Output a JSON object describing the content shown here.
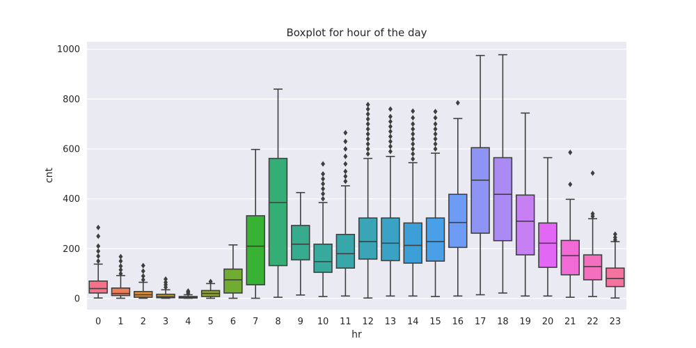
{
  "chart_data": {
    "type": "boxplot",
    "title": "Boxplot for hour of the day",
    "xlabel": "hr",
    "ylabel": "cnt",
    "ylim": [
      -45,
      1030
    ],
    "yticks": [
      0,
      200,
      400,
      600,
      800,
      1000
    ],
    "grid": true,
    "background": "#eaeaf2",
    "categories": [
      "0",
      "1",
      "2",
      "3",
      "4",
      "5",
      "6",
      "7",
      "8",
      "9",
      "10",
      "11",
      "12",
      "13",
      "14",
      "15",
      "16",
      "17",
      "18",
      "19",
      "20",
      "21",
      "22",
      "23"
    ],
    "boxes": [
      {
        "hr": "0",
        "color": "#f77189",
        "whislo": 2,
        "q1": 22,
        "med": 40,
        "q3": 70,
        "whishi": 138,
        "outliers": [
          150,
          170,
          190,
          210,
          250,
          285
        ]
      },
      {
        "hr": "1",
        "color": "#ec7d57",
        "whislo": 1,
        "q1": 12,
        "med": 20,
        "q3": 42,
        "whishi": 92,
        "outliers": [
          100,
          115,
          130,
          150,
          168
        ]
      },
      {
        "hr": "2",
        "color": "#d58c32",
        "whislo": 1,
        "q1": 5,
        "med": 15,
        "q3": 28,
        "whishi": 65,
        "outliers": [
          75,
          90,
          110,
          132
        ]
      },
      {
        "hr": "3",
        "color": "#bb9832",
        "whislo": 1,
        "q1": 3,
        "med": 7,
        "q3": 17,
        "whishi": 35,
        "outliers": [
          45,
          55,
          65,
          78
        ]
      },
      {
        "hr": "4",
        "color": "#a59f31",
        "whislo": 1,
        "q1": 2,
        "med": 5,
        "q3": 8,
        "whishi": 15,
        "outliers": [
          20,
          25,
          30
        ]
      },
      {
        "hr": "5",
        "color": "#8ea531",
        "whislo": 1,
        "q1": 8,
        "med": 20,
        "q3": 32,
        "whishi": 60,
        "outliers": [
          68
        ]
      },
      {
        "hr": "6",
        "color": "#6fac31",
        "whislo": 1,
        "q1": 22,
        "med": 75,
        "q3": 118,
        "whishi": 215,
        "outliers": []
      },
      {
        "hr": "7",
        "color": "#38b232",
        "whislo": 1,
        "q1": 55,
        "med": 210,
        "q3": 332,
        "whishi": 598,
        "outliers": []
      },
      {
        "hr": "8",
        "color": "#34ae75",
        "whislo": 5,
        "q1": 132,
        "med": 385,
        "q3": 562,
        "whishi": 840,
        "outliers": []
      },
      {
        "hr": "9",
        "color": "#36ab8d",
        "whislo": 14,
        "q1": 155,
        "med": 218,
        "q3": 293,
        "whishi": 425,
        "outliers": []
      },
      {
        "hr": "10",
        "color": "#37a99d",
        "whislo": 8,
        "q1": 105,
        "med": 148,
        "q3": 218,
        "whishi": 385,
        "outliers": [
          400,
          420,
          440,
          460,
          480,
          500,
          540
        ]
      },
      {
        "hr": "11",
        "color": "#38a7aa",
        "whislo": 10,
        "q1": 122,
        "med": 180,
        "q3": 257,
        "whishi": 452,
        "outliers": [
          470,
          490,
          510,
          540,
          570,
          600,
          630,
          665
        ]
      },
      {
        "hr": "12",
        "color": "#39a5b6",
        "whislo": 2,
        "q1": 158,
        "med": 228,
        "q3": 323,
        "whishi": 562,
        "outliers": [
          580,
          600,
          620,
          640,
          660,
          680,
          700,
          720,
          740,
          760,
          778
        ]
      },
      {
        "hr": "13",
        "color": "#3aa2c4",
        "whislo": 10,
        "q1": 152,
        "med": 222,
        "q3": 323,
        "whishi": 570,
        "outliers": [
          590,
          610,
          630,
          650,
          670,
          690,
          710,
          730,
          760
        ]
      },
      {
        "hr": "14",
        "color": "#3c9fd7",
        "whislo": 10,
        "q1": 142,
        "med": 213,
        "q3": 303,
        "whishi": 545,
        "outliers": [
          560,
          580,
          600,
          620,
          640,
          660,
          680,
          700,
          725,
          752
        ]
      },
      {
        "hr": "15",
        "color": "#49a0e6",
        "whislo": 8,
        "q1": 150,
        "med": 228,
        "q3": 323,
        "whishi": 583,
        "outliers": [
          600,
          620,
          640,
          660,
          680,
          700,
          725,
          750
        ]
      },
      {
        "hr": "16",
        "color": "#6e9bf4",
        "whislo": 10,
        "q1": 205,
        "med": 305,
        "q3": 418,
        "whishi": 722,
        "outliers": [
          785
        ]
      },
      {
        "hr": "17",
        "color": "#8d94f4",
        "whislo": 15,
        "q1": 262,
        "med": 475,
        "q3": 605,
        "whishi": 975,
        "outliers": []
      },
      {
        "hr": "18",
        "color": "#ac8af4",
        "whislo": 22,
        "q1": 232,
        "med": 418,
        "q3": 565,
        "whishi": 978,
        "outliers": []
      },
      {
        "hr": "19",
        "color": "#c77ff4",
        "whislo": 10,
        "q1": 175,
        "med": 310,
        "q3": 415,
        "whishi": 744,
        "outliers": []
      },
      {
        "hr": "20",
        "color": "#e167f4",
        "whislo": 10,
        "q1": 125,
        "med": 222,
        "q3": 303,
        "whishi": 565,
        "outliers": []
      },
      {
        "hr": "21",
        "color": "#f26ad6",
        "whislo": 5,
        "q1": 95,
        "med": 172,
        "q3": 233,
        "whishi": 398,
        "outliers": [
          458,
          586
        ]
      },
      {
        "hr": "22",
        "color": "#f46fbd",
        "whislo": 8,
        "q1": 75,
        "med": 128,
        "q3": 175,
        "whishi": 320,
        "outliers": [
          330,
          340,
          503
        ]
      },
      {
        "hr": "23",
        "color": "#f5739f",
        "whislo": 2,
        "q1": 48,
        "med": 80,
        "q3": 122,
        "whishi": 228,
        "outliers": [
          235,
          245,
          258
        ]
      }
    ]
  }
}
